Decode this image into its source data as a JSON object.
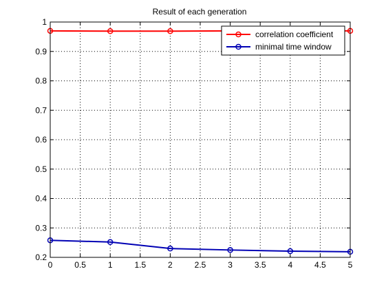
{
  "chart_data": {
    "type": "line",
    "title": "Result of each generation",
    "xlabel": "",
    "ylabel": "",
    "xlim": [
      0,
      5
    ],
    "ylim": [
      0.2,
      1.0
    ],
    "xticks": [
      "0",
      "0.5",
      "1",
      "1.5",
      "2",
      "2.5",
      "3",
      "3.5",
      "4",
      "4.5",
      "5"
    ],
    "yticks": [
      "0.2",
      "0.3",
      "0.4",
      "0.5",
      "0.6",
      "0.7",
      "0.8",
      "0.9",
      "1"
    ],
    "grid": true,
    "legend_position": "top-right",
    "series": [
      {
        "name": "correlation coefficient",
        "color": "#ff0000",
        "marker": "circle",
        "x": [
          0,
          1,
          2,
          3,
          4,
          5
        ],
        "y": [
          0.97,
          0.969,
          0.969,
          0.97,
          0.97,
          0.97
        ]
      },
      {
        "name": "minimal time window",
        "color": "#0000b4",
        "marker": "circle",
        "x": [
          0,
          1,
          2,
          3,
          4,
          5
        ],
        "y": [
          0.258,
          0.252,
          0.23,
          0.225,
          0.221,
          0.219
        ]
      }
    ]
  }
}
